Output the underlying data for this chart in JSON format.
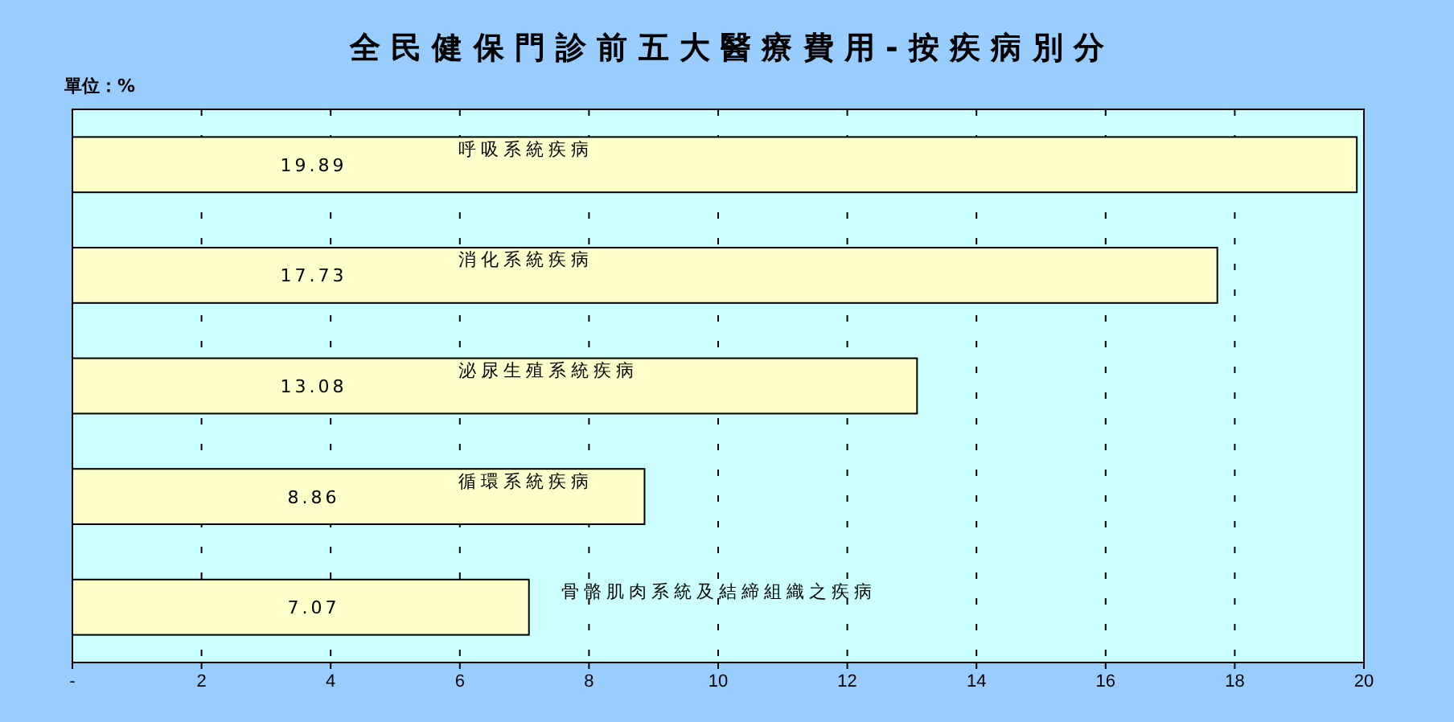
{
  "chart_data": {
    "type": "bar",
    "orientation": "horizontal",
    "title": "全 民 健 保 門 診 前 五 大 醫 療 費 用 - 按 疾 病 別 分",
    "annotations": [
      "單位：%"
    ],
    "categories": [
      "呼吸系統疾病",
      "消化系統疾病",
      "泌尿生殖系統疾病",
      "循環系統疾病",
      "骨骼肌肉系統及結締組織之疾病"
    ],
    "values": [
      19.89,
      17.73,
      13.08,
      8.86,
      7.07
    ],
    "color": "#ffffcc",
    "data_labels": true,
    "grid": "x",
    "xlim": [
      0,
      20
    ],
    "xticks": [
      {
        "value": 0,
        "label": "-"
      },
      2,
      4,
      6,
      8,
      10,
      12,
      14,
      16,
      18,
      20
    ]
  }
}
